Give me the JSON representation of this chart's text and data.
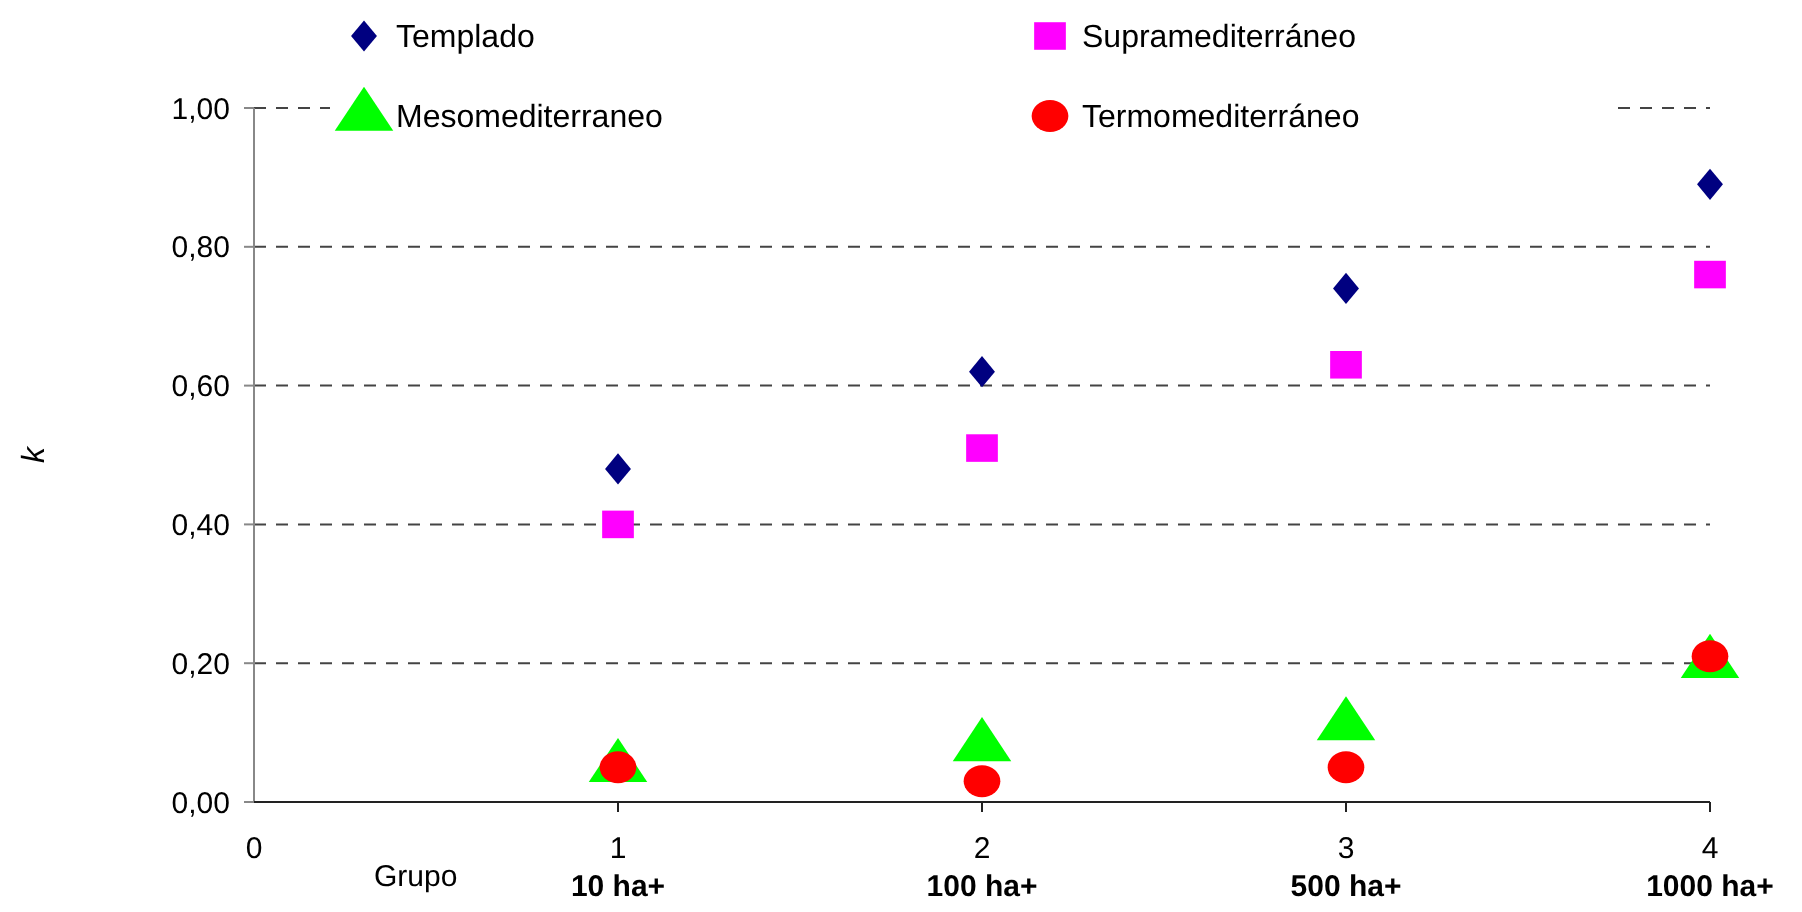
{
  "chart_data": {
    "type": "scatter",
    "ylabel": "k",
    "xlim": [
      0,
      4
    ],
    "xticks": [
      0,
      1,
      2,
      3,
      4
    ],
    "ylim": [
      0,
      1
    ],
    "yticks": [
      {
        "value": 0,
        "label": "0,00"
      },
      {
        "value": 0.2,
        "label": "0,20"
      },
      {
        "value": 0.4,
        "label": "0,40"
      },
      {
        "value": 0.6,
        "label": "0,60"
      },
      {
        "value": 0.8,
        "label": "0,80"
      },
      {
        "value": 1,
        "label": "1,00"
      }
    ],
    "grid": "y",
    "legend": "top",
    "x": [
      1,
      2,
      3,
      4
    ],
    "series": [
      {
        "name": "Templado",
        "color": "#000080",
        "marker": "diamond",
        "values": [
          0.48,
          0.62,
          0.74,
          0.89
        ]
      },
      {
        "name": "Supramediterráneo",
        "color": "#ff00ff",
        "marker": "square",
        "values": [
          0.4,
          0.51,
          0.63,
          0.76
        ]
      },
      {
        "name": "Mesomediterraneo",
        "color": "#00ff00",
        "marker": "triangle",
        "values": [
          0.05,
          0.08,
          0.11,
          0.2
        ]
      },
      {
        "name": "Termomediterráneo",
        "color": "#ff0000",
        "marker": "circle",
        "values": [
          0.05,
          0.03,
          0.05,
          0.21
        ]
      }
    ],
    "annotations": [
      "Grupo",
      "10 ha+",
      "100 ha+",
      "500 ha+",
      "1000 ha+"
    ]
  }
}
